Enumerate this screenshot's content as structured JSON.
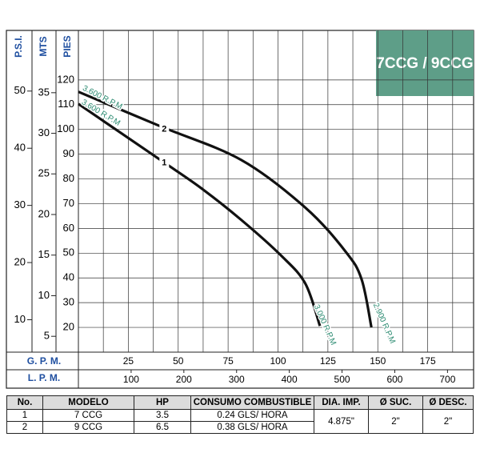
{
  "chart_data": {
    "type": "line",
    "title": "7CCG / 9CCG",
    "series": [
      {
        "name": "1",
        "color": "#111111",
        "x": [
          0,
          41,
          61.3,
          81.5,
          101.6,
          113.7,
          121
        ],
        "values": [
          110.3,
          87.7,
          76.4,
          63.5,
          49,
          37.7,
          20.6
        ]
      },
      {
        "name": "2",
        "color": "#111111",
        "x": [
          0,
          41,
          81.5,
          113.7,
          133.9,
          141.9,
          146.8
        ],
        "values": [
          115.2,
          101.3,
          87.7,
          68.4,
          50.6,
          39.4,
          20
        ]
      }
    ],
    "annotations": [
      "3.600 R.P.M",
      "3.600 R.P.M",
      "3.000 R.P.M",
      "2.900 R.P.M"
    ],
    "annotation_color": "#2a8a70",
    "xlabel": "G. P. M.",
    "xlim": [
      0,
      198
    ],
    "xticks": [
      25,
      50,
      75,
      100,
      125,
      150,
      175
    ],
    "xgrid": [
      12.5,
      25,
      37.5,
      50,
      62.5,
      75,
      87.5,
      100,
      112.5,
      125,
      137.5,
      150,
      162.5,
      175,
      187.5
    ],
    "x2label": "L. P. M.",
    "x2lim": [
      0,
      749.5
    ],
    "x2ticks": [
      100,
      200,
      300,
      400,
      500,
      600,
      700
    ],
    "ylabel": "PIES",
    "ylim": [
      10,
      140
    ],
    "yticks": [
      20,
      30,
      40,
      50,
      60,
      70,
      80,
      90,
      100,
      110,
      120
    ],
    "y2label": "MTS",
    "y2lim": [
      3.048,
      42.672
    ],
    "y2ticks": [
      5,
      10,
      15,
      20,
      25,
      30,
      35
    ],
    "y3label": "P.S.I.",
    "y3lim": [
      4.33,
      60.61
    ],
    "y3ticks": [
      10,
      20,
      30,
      40,
      50
    ],
    "axis_label_color": "#1f4fa0",
    "title_color": "#5e9e88",
    "grid": true
  },
  "table": {
    "headers": [
      "No.",
      "MODELO",
      "HP",
      "CONSUMO COMBUSTIBLE",
      "DIA. IMP.",
      "Ø SUC.",
      "Ø DESC."
    ],
    "rows": [
      [
        "1",
        "7 CCG",
        "3.5",
        "0.24 GLS/ HORA",
        "4.875\"",
        "2\"",
        "2\""
      ],
      [
        "2",
        "9 CCG",
        "6.5",
        "0.38 GLS/ HORA"
      ]
    ]
  }
}
